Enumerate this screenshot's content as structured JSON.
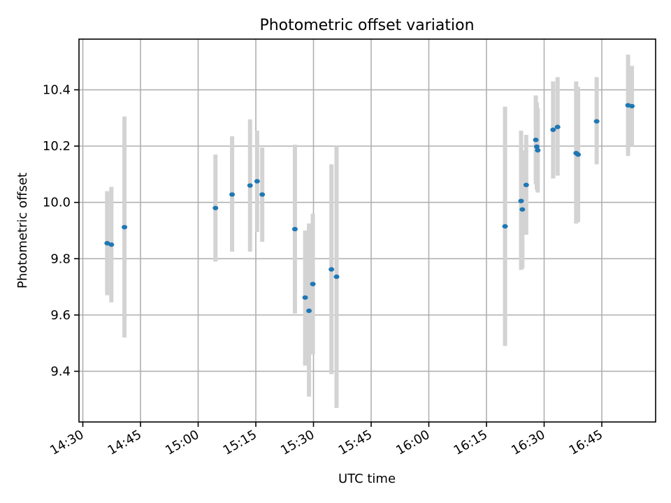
{
  "chart_data": {
    "type": "scatter",
    "title": "Photometric offset variation",
    "xlabel": "UTC time",
    "ylabel": "Photometric offset",
    "x_unit": "time",
    "xlim": [
      "14:29",
      "16:59"
    ],
    "ylim": [
      9.22,
      10.58
    ],
    "grid": true,
    "x_ticks": [
      "14:30",
      "14:45",
      "15:00",
      "15:15",
      "15:30",
      "15:45",
      "16:00",
      "16:15",
      "16:30",
      "16:45"
    ],
    "y_ticks": [
      9.4,
      9.6,
      9.8,
      10.0,
      10.2,
      10.4
    ],
    "colors": {
      "points": "#1f77b4",
      "errorbars": "#d3d3d3",
      "grid": "#b0b0b0"
    },
    "series": [
      {
        "points": [
          {
            "x": "14:36:20",
            "y": 9.855,
            "yerr_low": 9.67,
            "yerr_high": 10.04
          },
          {
            "x": "14:37:25",
            "y": 9.85,
            "yerr_low": 9.645,
            "yerr_high": 10.055
          },
          {
            "x": "14:40:50",
            "y": 9.912,
            "yerr_low": 9.52,
            "yerr_high": 10.305
          },
          {
            "x": "15:04:30",
            "y": 9.98,
            "yerr_low": 9.79,
            "yerr_high": 10.17
          },
          {
            "x": "15:08:50",
            "y": 10.028,
            "yerr_low": 9.825,
            "yerr_high": 10.235
          },
          {
            "x": "15:13:30",
            "y": 10.06,
            "yerr_low": 9.825,
            "yerr_high": 10.295
          },
          {
            "x": "15:15:20",
            "y": 10.075,
            "yerr_low": 9.895,
            "yerr_high": 10.255
          },
          {
            "x": "15:16:40",
            "y": 10.028,
            "yerr_low": 9.86,
            "yerr_high": 10.195
          },
          {
            "x": "15:25:10",
            "y": 9.905,
            "yerr_low": 9.605,
            "yerr_high": 10.205
          },
          {
            "x": "15:27:50",
            "y": 9.662,
            "yerr_low": 9.42,
            "yerr_high": 9.9
          },
          {
            "x": "15:28:50",
            "y": 9.615,
            "yerr_low": 9.31,
            "yerr_high": 9.925
          },
          {
            "x": "15:29:50",
            "y": 9.71,
            "yerr_low": 9.46,
            "yerr_high": 9.96
          },
          {
            "x": "15:34:40",
            "y": 9.762,
            "yerr_low": 9.39,
            "yerr_high": 10.135
          },
          {
            "x": "15:36:00",
            "y": 9.736,
            "yerr_low": 9.27,
            "yerr_high": 10.2
          },
          {
            "x": "16:19:50",
            "y": 9.915,
            "yerr_low": 9.49,
            "yerr_high": 10.34
          },
          {
            "x": "16:24:00",
            "y": 10.005,
            "yerr_low": 9.76,
            "yerr_high": 10.255
          },
          {
            "x": "16:24:20",
            "y": 9.975,
            "yerr_low": 9.765,
            "yerr_high": 10.185
          },
          {
            "x": "16:25:20",
            "y": 10.062,
            "yerr_low": 9.885,
            "yerr_high": 10.24
          },
          {
            "x": "16:27:50",
            "y": 10.222,
            "yerr_low": 10.065,
            "yerr_high": 10.38
          },
          {
            "x": "16:28:05",
            "y": 10.198,
            "yerr_low": 10.045,
            "yerr_high": 10.355
          },
          {
            "x": "16:28:20",
            "y": 10.185,
            "yerr_low": 10.035,
            "yerr_high": 10.335
          },
          {
            "x": "16:32:20",
            "y": 10.258,
            "yerr_low": 10.085,
            "yerr_high": 10.43
          },
          {
            "x": "16:33:30",
            "y": 10.268,
            "yerr_low": 10.095,
            "yerr_high": 10.445
          },
          {
            "x": "16:38:20",
            "y": 10.175,
            "yerr_low": 9.925,
            "yerr_high": 10.43
          },
          {
            "x": "16:38:50",
            "y": 10.17,
            "yerr_low": 9.93,
            "yerr_high": 10.41
          },
          {
            "x": "16:43:40",
            "y": 10.288,
            "yerr_low": 10.135,
            "yerr_high": 10.445
          },
          {
            "x": "16:51:50",
            "y": 10.345,
            "yerr_low": 10.165,
            "yerr_high": 10.525
          },
          {
            "x": "16:52:50",
            "y": 10.342,
            "yerr_low": 10.2,
            "yerr_high": 10.485
          }
        ]
      }
    ]
  }
}
